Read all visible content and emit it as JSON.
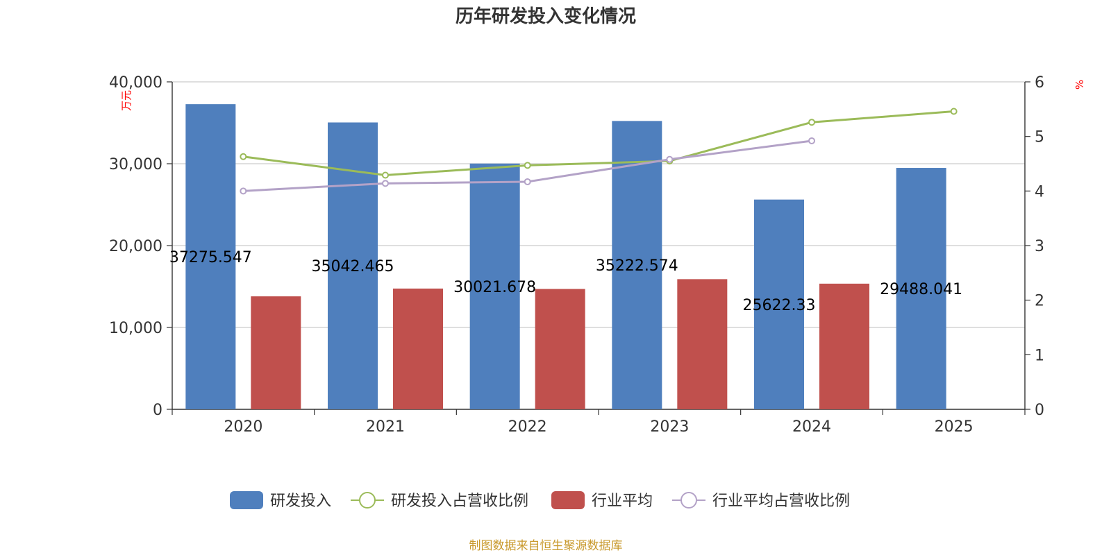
{
  "chart_data": {
    "type": "bar+line",
    "title": "历年研发投入变化情况",
    "categories": [
      "2020",
      "2021",
      "2022",
      "2023",
      "2024",
      "2025"
    ],
    "series": [
      {
        "name": "研发投入",
        "type": "bar",
        "axis": "left",
        "color": "#4f7fbd",
        "values": [
          37275.547,
          35042.465,
          30021.678,
          35222.574,
          25622.33,
          29488.041
        ],
        "labels": [
          "37275.547",
          "35042.465",
          "30021.678",
          "35222.574",
          "25622.33",
          "29488.041"
        ]
      },
      {
        "name": "研发投入占营收比例",
        "type": "line",
        "axis": "right",
        "color": "#9bbb59",
        "values": [
          4.63,
          4.29,
          4.47,
          4.55,
          5.26,
          5.46
        ]
      },
      {
        "name": "行业平均",
        "type": "bar",
        "axis": "left",
        "color": "#c0504d",
        "values": [
          13800,
          14750,
          14700,
          15900,
          15350,
          null
        ]
      },
      {
        "name": "行业平均占营收比例",
        "type": "line",
        "axis": "right",
        "color": "#b3a2c7",
        "values": [
          4.0,
          4.14,
          4.17,
          4.58,
          4.92,
          null
        ]
      }
    ],
    "y_left": {
      "label": "万元",
      "range": [
        0,
        40000
      ],
      "ticks": [
        0,
        10000,
        20000,
        30000,
        40000
      ],
      "tick_labels": [
        "0",
        "10,000",
        "20,000",
        "30,000",
        "40,000"
      ]
    },
    "y_right": {
      "label": "%",
      "range": [
        0,
        6
      ],
      "ticks": [
        0,
        1,
        2,
        3,
        4,
        5,
        6
      ],
      "tick_labels": [
        "0",
        "1",
        "2",
        "3",
        "4",
        "5",
        "6"
      ]
    },
    "grid": true,
    "legend_position": "bottom",
    "source": "制图数据来自恒生聚源数据库"
  }
}
